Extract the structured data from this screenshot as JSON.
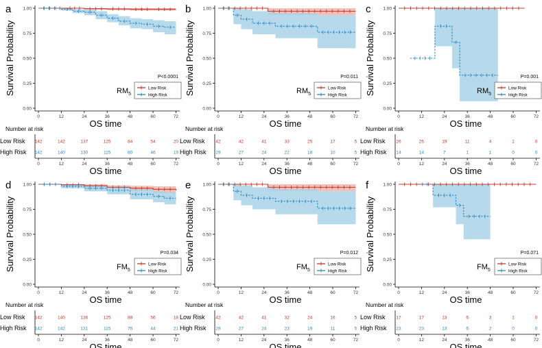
{
  "colors": {
    "low": "#c0392b",
    "high": "#2e86c1",
    "low_band": "#f1b5ad",
    "high_band": "#a9d4e8",
    "axis": "#000000"
  },
  "common": {
    "ylabel": "Survival Probability",
    "xlabel": "OS time",
    "risk_title": "Number at risk",
    "low_label": "Low Risk",
    "high_label": "High Risk",
    "legend_low": "Low Risk",
    "legend_high": "High Risk",
    "xticks": [
      0,
      12,
      24,
      36,
      48,
      60,
      72
    ],
    "yticks": [
      "0.00",
      "0.25",
      "0.50",
      "0.75",
      "1.00"
    ]
  },
  "chart_data": [
    {
      "type": "line",
      "panel": "a",
      "model": "RM",
      "sub": "5",
      "pvalue": "P<0.0001",
      "xlim": [
        0,
        74
      ],
      "ylim": [
        0,
        1
      ],
      "series": [
        {
          "name": "Low Risk",
          "x": [
            0,
            14,
            24,
            36,
            48,
            60,
            72
          ],
          "y": [
            1.0,
            1.0,
            0.995,
            0.993,
            0.99,
            0.99,
            0.99
          ],
          "lower": [
            1.0,
            1.0,
            0.985,
            0.98,
            0.975,
            0.975,
            0.975
          ],
          "upper": [
            1.0,
            1.0,
            1.0,
            1.0,
            1.0,
            1.0,
            1.0
          ]
        },
        {
          "name": "High Risk",
          "x": [
            0,
            12,
            18,
            24,
            30,
            36,
            42,
            48,
            54,
            60,
            66,
            72
          ],
          "y": [
            1.0,
            0.99,
            0.97,
            0.96,
            0.93,
            0.9,
            0.87,
            0.85,
            0.84,
            0.82,
            0.81,
            0.81
          ],
          "lower": [
            1.0,
            0.975,
            0.95,
            0.93,
            0.89,
            0.86,
            0.83,
            0.8,
            0.79,
            0.76,
            0.74,
            0.74
          ],
          "upper": [
            1.0,
            1.0,
            0.99,
            0.985,
            0.97,
            0.94,
            0.92,
            0.9,
            0.89,
            0.88,
            0.87,
            0.87
          ]
        }
      ],
      "risk_low": [
        "142",
        "142",
        "137",
        "125",
        "84",
        "54",
        "20"
      ],
      "risk_high": [
        "142",
        "140",
        "130",
        "115",
        "80",
        "46",
        "19"
      ]
    },
    {
      "type": "line",
      "panel": "b",
      "model": "RM",
      "sub": "5",
      "pvalue": "P=0.011",
      "xlim": [
        0,
        74
      ],
      "ylim": [
        0,
        1
      ],
      "series": [
        {
          "name": "Low Risk",
          "x": [
            0,
            26,
            72
          ],
          "y": [
            1.0,
            0.97,
            0.97
          ],
          "lower": [
            1.0,
            0.93,
            0.93
          ],
          "upper": [
            1.0,
            1.0,
            1.0
          ]
        },
        {
          "name": "High Risk",
          "x": [
            0,
            8,
            12,
            18,
            30,
            52,
            72
          ],
          "y": [
            1.0,
            0.93,
            0.89,
            0.85,
            0.82,
            0.76,
            0.76
          ],
          "lower": [
            1.0,
            0.84,
            0.79,
            0.74,
            0.7,
            0.6,
            0.6
          ],
          "upper": [
            1.0,
            1.0,
            0.99,
            0.97,
            0.95,
            0.93,
            0.93
          ]
        }
      ],
      "risk_low": [
        "42",
        "42",
        "41",
        "33",
        "25",
        "17",
        "5"
      ],
      "risk_high": [
        "29",
        "27",
        "24",
        "22",
        "18",
        "10",
        "5"
      ]
    },
    {
      "type": "line",
      "panel": "c",
      "model": "RM",
      "sub": "5",
      "pvalue": "P=0.001",
      "xlim": [
        0,
        74
      ],
      "ylim": [
        0,
        1
      ],
      "series": [
        {
          "name": "Low Risk",
          "x": [
            0,
            66
          ],
          "y": [
            1.0,
            1.0
          ],
          "lower": [
            1.0,
            1.0
          ],
          "upper": [
            1.0,
            1.0
          ]
        },
        {
          "name": "High Risk",
          "x": [
            6,
            19,
            28,
            32,
            52
          ],
          "y": [
            0.5,
            0.82,
            0.66,
            0.33,
            0.33
          ],
          "lower": [
            0.5,
            0.62,
            0.4,
            0.07,
            0.07
          ],
          "upper": [
            0.5,
            1.0,
            1.0,
            1.0,
            1.0
          ]
        }
      ],
      "risk_low": [
        "26",
        "26",
        "19",
        "11",
        "4",
        "1",
        "0"
      ],
      "risk_high": [
        "14",
        "14",
        "7",
        "1",
        "1",
        "0",
        "0"
      ]
    },
    {
      "type": "line",
      "panel": "d",
      "model": "FM",
      "sub": "5",
      "pvalue": "P=0.034",
      "xlim": [
        0,
        74
      ],
      "ylim": [
        0,
        1
      ],
      "series": [
        {
          "name": "Low Risk",
          "x": [
            0,
            12,
            24,
            36,
            48,
            60,
            72
          ],
          "y": [
            1.0,
            0.995,
            0.985,
            0.97,
            0.96,
            0.95,
            0.94
          ],
          "lower": [
            1.0,
            0.985,
            0.97,
            0.95,
            0.93,
            0.91,
            0.9
          ],
          "upper": [
            1.0,
            1.0,
            1.0,
            0.99,
            0.985,
            0.98,
            0.98
          ]
        },
        {
          "name": "High Risk",
          "x": [
            0,
            12,
            24,
            36,
            48,
            60,
            66,
            72
          ],
          "y": [
            1.0,
            0.98,
            0.96,
            0.94,
            0.9,
            0.88,
            0.86,
            0.86
          ],
          "lower": [
            1.0,
            0.96,
            0.93,
            0.9,
            0.85,
            0.82,
            0.8,
            0.8
          ],
          "upper": [
            1.0,
            1.0,
            0.99,
            0.98,
            0.95,
            0.93,
            0.92,
            0.92
          ]
        }
      ],
      "risk_low": [
        "142",
        "140",
        "136",
        "125",
        "88",
        "56",
        "18"
      ],
      "risk_high": [
        "142",
        "142",
        "131",
        "115",
        "76",
        "44",
        "21"
      ]
    },
    {
      "type": "line",
      "panel": "e",
      "model": "FM",
      "sub": "5",
      "pvalue": "P=0.012",
      "xlim": [
        0,
        74
      ],
      "ylim": [
        0,
        1
      ],
      "series": [
        {
          "name": "Low Risk",
          "x": [
            0,
            26,
            72
          ],
          "y": [
            1.0,
            0.97,
            0.97
          ],
          "lower": [
            1.0,
            0.93,
            0.93
          ],
          "upper": [
            1.0,
            1.0,
            1.0
          ]
        },
        {
          "name": "High Risk",
          "x": [
            0,
            8,
            12,
            18,
            30,
            52,
            72
          ],
          "y": [
            1.0,
            0.93,
            0.89,
            0.86,
            0.83,
            0.76,
            0.76
          ],
          "lower": [
            1.0,
            0.84,
            0.79,
            0.75,
            0.7,
            0.6,
            0.6
          ],
          "upper": [
            1.0,
            1.0,
            0.99,
            0.97,
            0.95,
            0.93,
            0.93
          ]
        }
      ],
      "risk_low": [
        "42",
        "42",
        "41",
        "32",
        "24",
        "16",
        "5"
      ],
      "risk_high": [
        "29",
        "27",
        "24",
        "23",
        "19",
        "11",
        "5"
      ]
    },
    {
      "type": "line",
      "panel": "f",
      "model": "FM",
      "sub": "5",
      "pvalue": "P=0.071",
      "xlim": [
        0,
        74
      ],
      "ylim": [
        0,
        1
      ],
      "series": [
        {
          "name": "Low Risk",
          "x": [
            0,
            72
          ],
          "y": [
            1.0,
            1.0
          ],
          "lower": [
            1.0,
            1.0
          ],
          "upper": [
            1.0,
            1.0
          ]
        },
        {
          "name": "High Risk",
          "x": [
            12,
            18,
            30,
            34,
            48
          ],
          "y": [
            1.0,
            0.89,
            0.79,
            0.68,
            0.68
          ],
          "lower": [
            1.0,
            0.77,
            0.6,
            0.45,
            0.45
          ],
          "upper": [
            1.0,
            1.0,
            1.0,
            1.0,
            1.0
          ]
        }
      ],
      "risk_low": [
        "17",
        "17",
        "13",
        "6",
        "3",
        "1",
        "0"
      ],
      "risk_high": [
        "23",
        "23",
        "13",
        "6",
        "2",
        "0",
        "0"
      ]
    }
  ]
}
